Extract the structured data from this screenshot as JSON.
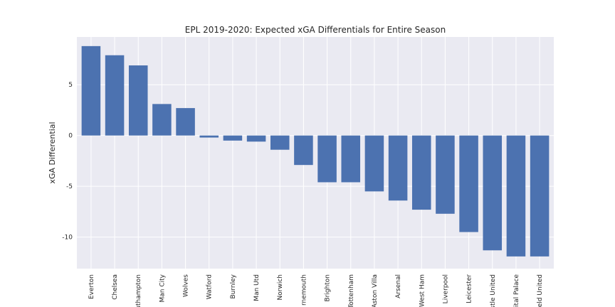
{
  "chart_data": {
    "type": "bar",
    "title": "EPL 2019-2020: Expected xGA Differentials for Entire Season",
    "xlabel": "",
    "ylabel": "xGA Differential",
    "categories": [
      "Everton",
      "Chelsea",
      "uthampton",
      "Man City",
      "Wolves",
      "Watford",
      "Burnley",
      "Man Utd",
      "Norwich",
      "rnemouth",
      "Brighton",
      "Tottenham",
      "Aston Villa",
      "Arsenal",
      "West Ham",
      "Liverpool",
      "Leicester",
      "stle United",
      "ital Palace",
      "eld United"
    ],
    "values": [
      8.8,
      7.9,
      6.9,
      3.1,
      2.7,
      -0.2,
      -0.5,
      -0.6,
      -1.4,
      -2.9,
      -4.6,
      -4.6,
      -5.5,
      -6.4,
      -7.3,
      -7.7,
      -9.5,
      -11.3,
      -11.9,
      -11.9
    ],
    "ylim": [
      -13.1,
      9.7
    ],
    "yticks": [
      -10,
      -5,
      0,
      5
    ],
    "grid": true,
    "colors": {
      "bar": "#4c72b0",
      "plot_background": "#eaeaf2",
      "grid": "#ffffff"
    }
  }
}
